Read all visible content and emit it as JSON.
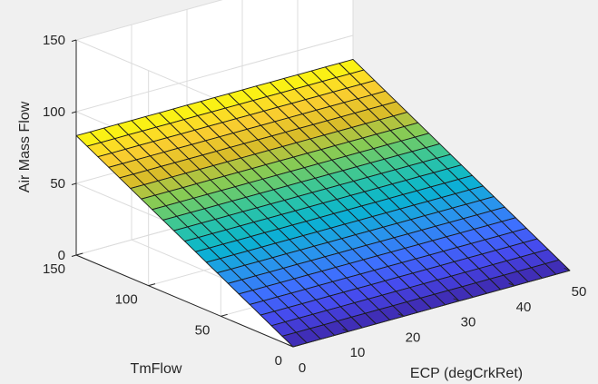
{
  "chart_data": {
    "type": "surface",
    "title": "",
    "xlabel": "ECP (degCrkRet)",
    "ylabel": "TmFlow",
    "zlabel": "Air Mass Flow",
    "x_ticks": [
      "0",
      "10",
      "20",
      "30",
      "40",
      "50"
    ],
    "y_ticks": [
      "0",
      "50",
      "100",
      "150"
    ],
    "z_ticks": [
      "0",
      "50",
      "100",
      "150"
    ],
    "xlim": [
      0,
      50
    ],
    "ylim": [
      0,
      150
    ],
    "zlim": [
      0,
      150
    ],
    "grid": true,
    "colormap": "parula",
    "x": [
      0,
      2.5,
      5,
      7.5,
      10,
      12.5,
      15,
      17.5,
      20,
      22.5,
      25,
      27.5,
      30,
      32.5,
      35,
      37.5,
      40,
      42.5,
      45,
      47.5,
      50
    ],
    "y": [
      0,
      7.5,
      15,
      22.5,
      30,
      37.5,
      45,
      52.5,
      60,
      67.5,
      75,
      82.5,
      90,
      97.5,
      105,
      112.5,
      120,
      127.5,
      135,
      142.5,
      150
    ],
    "z_model": "z = 0.555 * y (Air Mass Flow increases linearly with TmFlow, nearly constant across ECP)",
    "z_at_corners": {
      "x0_y0": 0,
      "x50_y0": 0,
      "x0_y150": 83,
      "x50_y150": 83
    }
  }
}
